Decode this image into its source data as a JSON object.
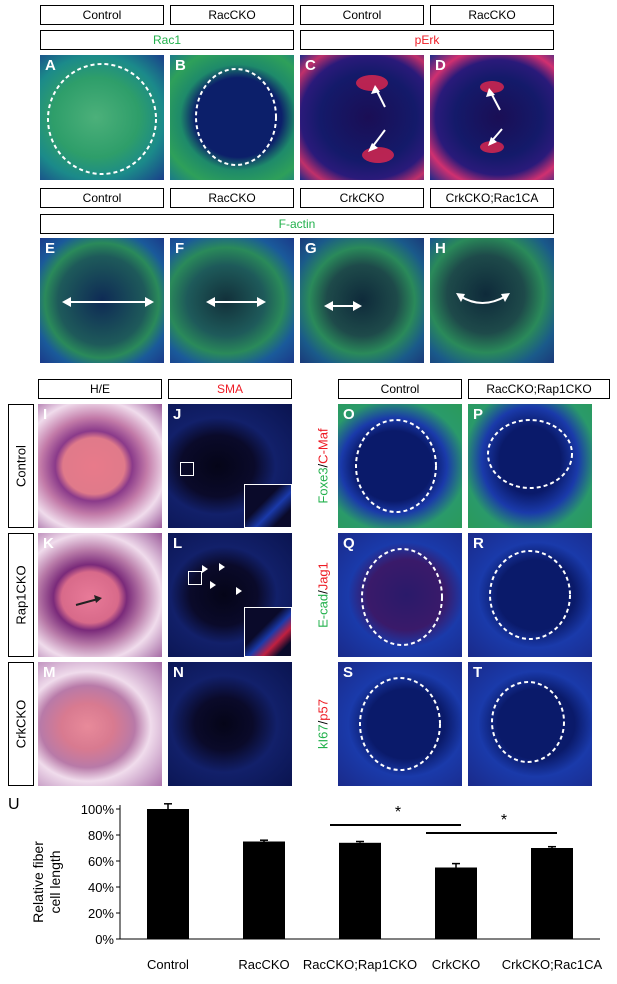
{
  "colors": {
    "green": "#22b14c",
    "red": "#ee1c25"
  },
  "row1": {
    "headers": [
      "Control",
      "RacCKO",
      "Control",
      "RacCKO"
    ],
    "stain_left": "Rac1",
    "stain_right": "pErk",
    "panels": [
      "A",
      "B",
      "C",
      "D"
    ]
  },
  "row2": {
    "headers": [
      "Control",
      "RacCKO",
      "CrkCKO",
      "CrkCKO;Rac1CA"
    ],
    "stain": "F-actin",
    "panels": [
      "E",
      "F",
      "G",
      "H"
    ]
  },
  "lower": {
    "col_headers": [
      "H/E",
      "SMA",
      "Control",
      "RacCKO;Rap1CKO"
    ],
    "row_labels": [
      "Control",
      "Rap1CKO",
      "CrkCKO"
    ],
    "panels": [
      "I",
      "J",
      "K",
      "L",
      "M",
      "N",
      "O",
      "P",
      "Q",
      "R",
      "S",
      "T"
    ],
    "stain_rows": [
      {
        "green": "Foxe3",
        "red": "C-Maf"
      },
      {
        "green": "E-cad",
        "red": "Jag1"
      },
      {
        "green": "kI67",
        "red": "p57"
      }
    ]
  },
  "chart_data": {
    "type": "bar",
    "panel_label": "U",
    "categories": [
      "Control",
      "RacCKO",
      "RacCKO;Rap1CKO",
      "CrkCKO",
      "CrkCKO;Rac1CA"
    ],
    "values": [
      100,
      75,
      74,
      55,
      70
    ],
    "errors": [
      4,
      1,
      1,
      3,
      1
    ],
    "ylabel": "Relative  fiber\ncell length",
    "ylim": [
      0,
      100
    ],
    "yticks": [
      "0%",
      "20%",
      "40%",
      "60%",
      "80%",
      "100%"
    ],
    "significance": [
      {
        "from": "RacCKO;Rap1CKO",
        "to": "CrkCKO",
        "label": "*"
      },
      {
        "from": "CrkCKO",
        "to": "CrkCKO;Rac1CA",
        "label": "*"
      }
    ]
  }
}
